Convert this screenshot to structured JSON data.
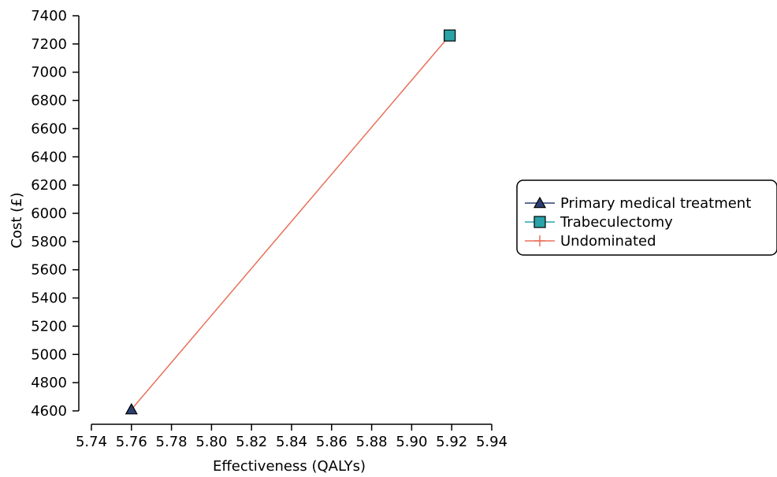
{
  "chart_data": {
    "type": "scatter",
    "xlabel": "Effectiveness (QALYs)",
    "ylabel": "Cost (£)",
    "xlim": [
      5.74,
      5.94
    ],
    "ylim": [
      4600,
      7400
    ],
    "x_ticks": [
      "5.74",
      "5.76",
      "5.78",
      "5.80",
      "5.82",
      "5.84",
      "5.86",
      "5.88",
      "5.90",
      "5.92",
      "5.94"
    ],
    "y_ticks": [
      "4600",
      "4800",
      "5000",
      "5200",
      "5400",
      "5600",
      "5800",
      "6000",
      "6200",
      "6400",
      "6600",
      "6800",
      "7000",
      "7200",
      "7400"
    ],
    "grid": false,
    "legend_position": "right",
    "series": [
      {
        "name": "Primary medical treatment",
        "marker": "triangle",
        "color": "#2c3e70",
        "points": [
          [
            5.76,
            4610
          ]
        ]
      },
      {
        "name": "Trabeculectomy",
        "marker": "square",
        "color": "#2aa3a8",
        "points": [
          [
            5.919,
            7260
          ]
        ]
      },
      {
        "name": "Undominated",
        "marker": "line",
        "color": "#e8715a",
        "points": [
          [
            5.76,
            4610
          ],
          [
            5.919,
            7260
          ]
        ]
      }
    ]
  }
}
